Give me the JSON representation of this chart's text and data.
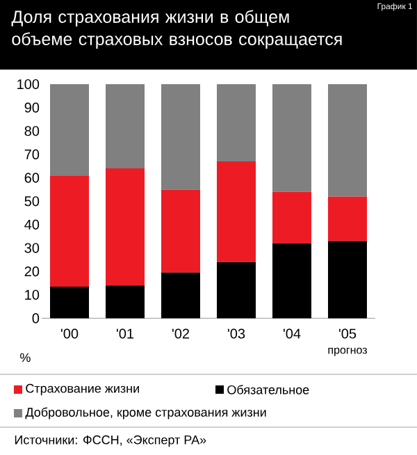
{
  "chart_data": {
    "type": "bar",
    "stacked": true,
    "title": "Доля страхования жизни в общем объеме страховых взносов сокращается",
    "ylabel": "%",
    "categories": [
      "'00",
      "'01",
      "'02",
      "'03",
      "'04",
      "'05"
    ],
    "series": [
      {
        "name": "Обязательное",
        "color": "#000000",
        "values": [
          13.5,
          14,
          19.5,
          24,
          32,
          33
        ]
      },
      {
        "name": "Страхование жизни",
        "color": "#ed1c24",
        "values": [
          47.5,
          50,
          35.5,
          43,
          22,
          19
        ]
      },
      {
        "name": "Добровольное, кроме страхования жизни",
        "color": "#808080",
        "values": [
          39,
          36,
          45,
          33,
          46,
          48
        ]
      }
    ],
    "ylim": [
      0,
      100
    ],
    "yticks": [
      0,
      10,
      20,
      30,
      40,
      50,
      60,
      70,
      80,
      90,
      100
    ],
    "legend": "bottom",
    "annotations": [
      "График 1",
      "прогноз",
      "Источники: ФССН, «Эксперт РА»"
    ]
  }
}
